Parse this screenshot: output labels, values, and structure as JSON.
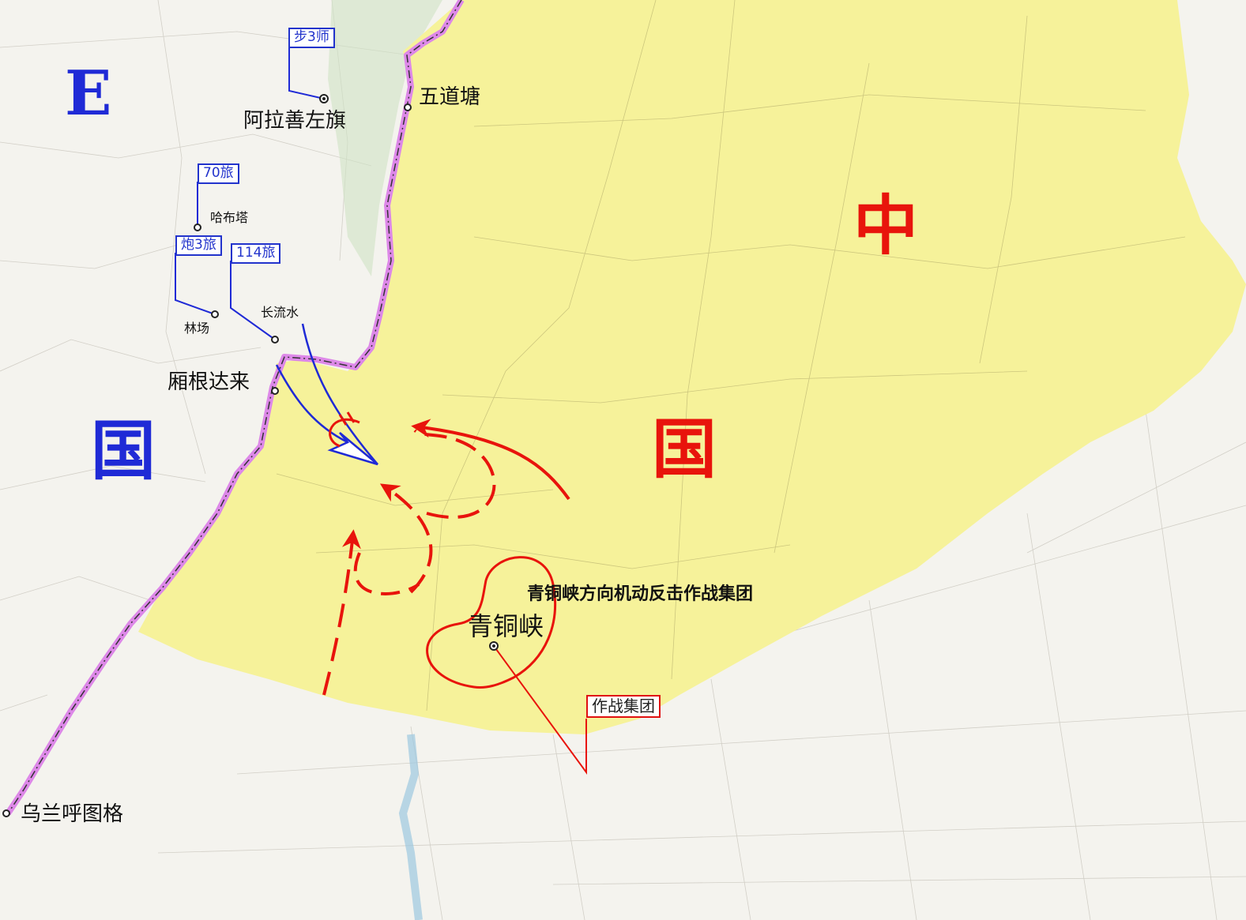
{
  "regions": {
    "e_country": {
      "char1": "E",
      "char2": "国",
      "color": "#1f2ad6"
    },
    "china": {
      "char1": "中",
      "char2": "国",
      "color": "#e8140c"
    }
  },
  "cities": {
    "alashan": "阿拉善左旗",
    "wudaotang": "五道塘",
    "habuta": "哈布塔",
    "linchang": "林场",
    "changliushui": "长流水",
    "xianggendalai": "厢根达来",
    "qingtongxia": "青铜峡",
    "wulanhutuge": "乌兰呼图格"
  },
  "units": {
    "bu3shi": "步3师",
    "lu70": "70旅",
    "pao3lu": "炮3旅",
    "lu114": "114旅",
    "combat_group": "作战集团"
  },
  "annotations": {
    "group_title": "青铜峡方向机动反击作战集团"
  },
  "colors": {
    "territory": "#f6f29a",
    "border": "#dd88e8",
    "blue_force": "#1f2ad6",
    "red_force": "#e8140c",
    "base_map": "#f4f3ee"
  }
}
